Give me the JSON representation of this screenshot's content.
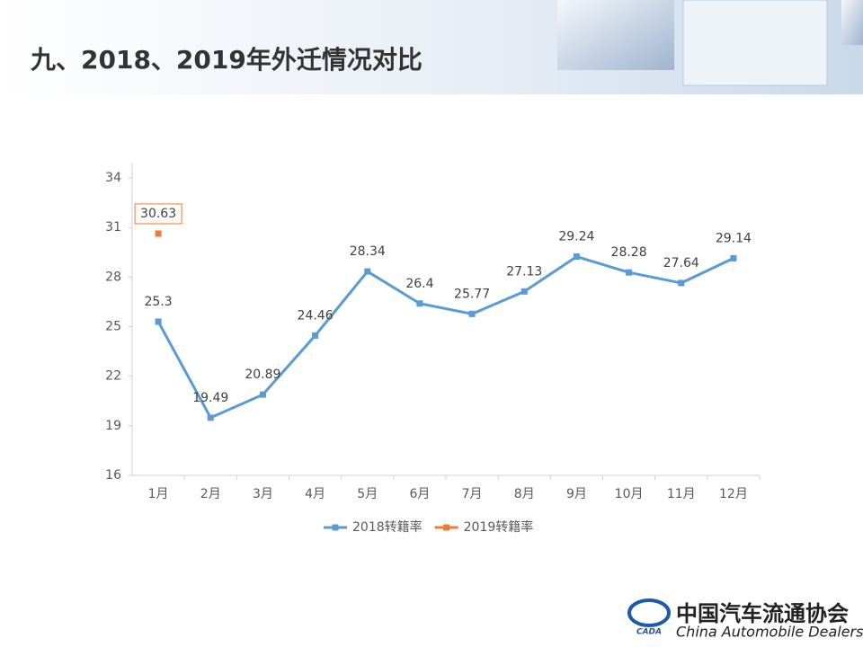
{
  "header": {
    "title": "九、2018、2019年外迁情况对比"
  },
  "chart_data": {
    "type": "line",
    "categories": [
      "1月",
      "2月",
      "3月",
      "4月",
      "5月",
      "6月",
      "7月",
      "8月",
      "9月",
      "10月",
      "11月",
      "12月"
    ],
    "series": [
      {
        "name": "2018转籍率",
        "color": "#5b9bd5",
        "values": [
          25.3,
          19.49,
          20.89,
          24.46,
          28.34,
          26.4,
          25.77,
          27.13,
          29.24,
          28.28,
          27.64,
          29.14
        ]
      },
      {
        "name": "2019转籍率",
        "color": "#ed7d31",
        "values": [
          30.63,
          null,
          null,
          null,
          null,
          null,
          null,
          null,
          null,
          null,
          null,
          null
        ]
      }
    ],
    "ylim": [
      16,
      34
    ],
    "yticks": [
      16,
      19,
      22,
      25,
      28,
      31,
      34
    ],
    "grid": false,
    "legend": "bottom"
  },
  "footer": {
    "org": "中国汽车流通协会",
    "org_en": "China Automobile Dealers",
    "logo": "CADA"
  }
}
